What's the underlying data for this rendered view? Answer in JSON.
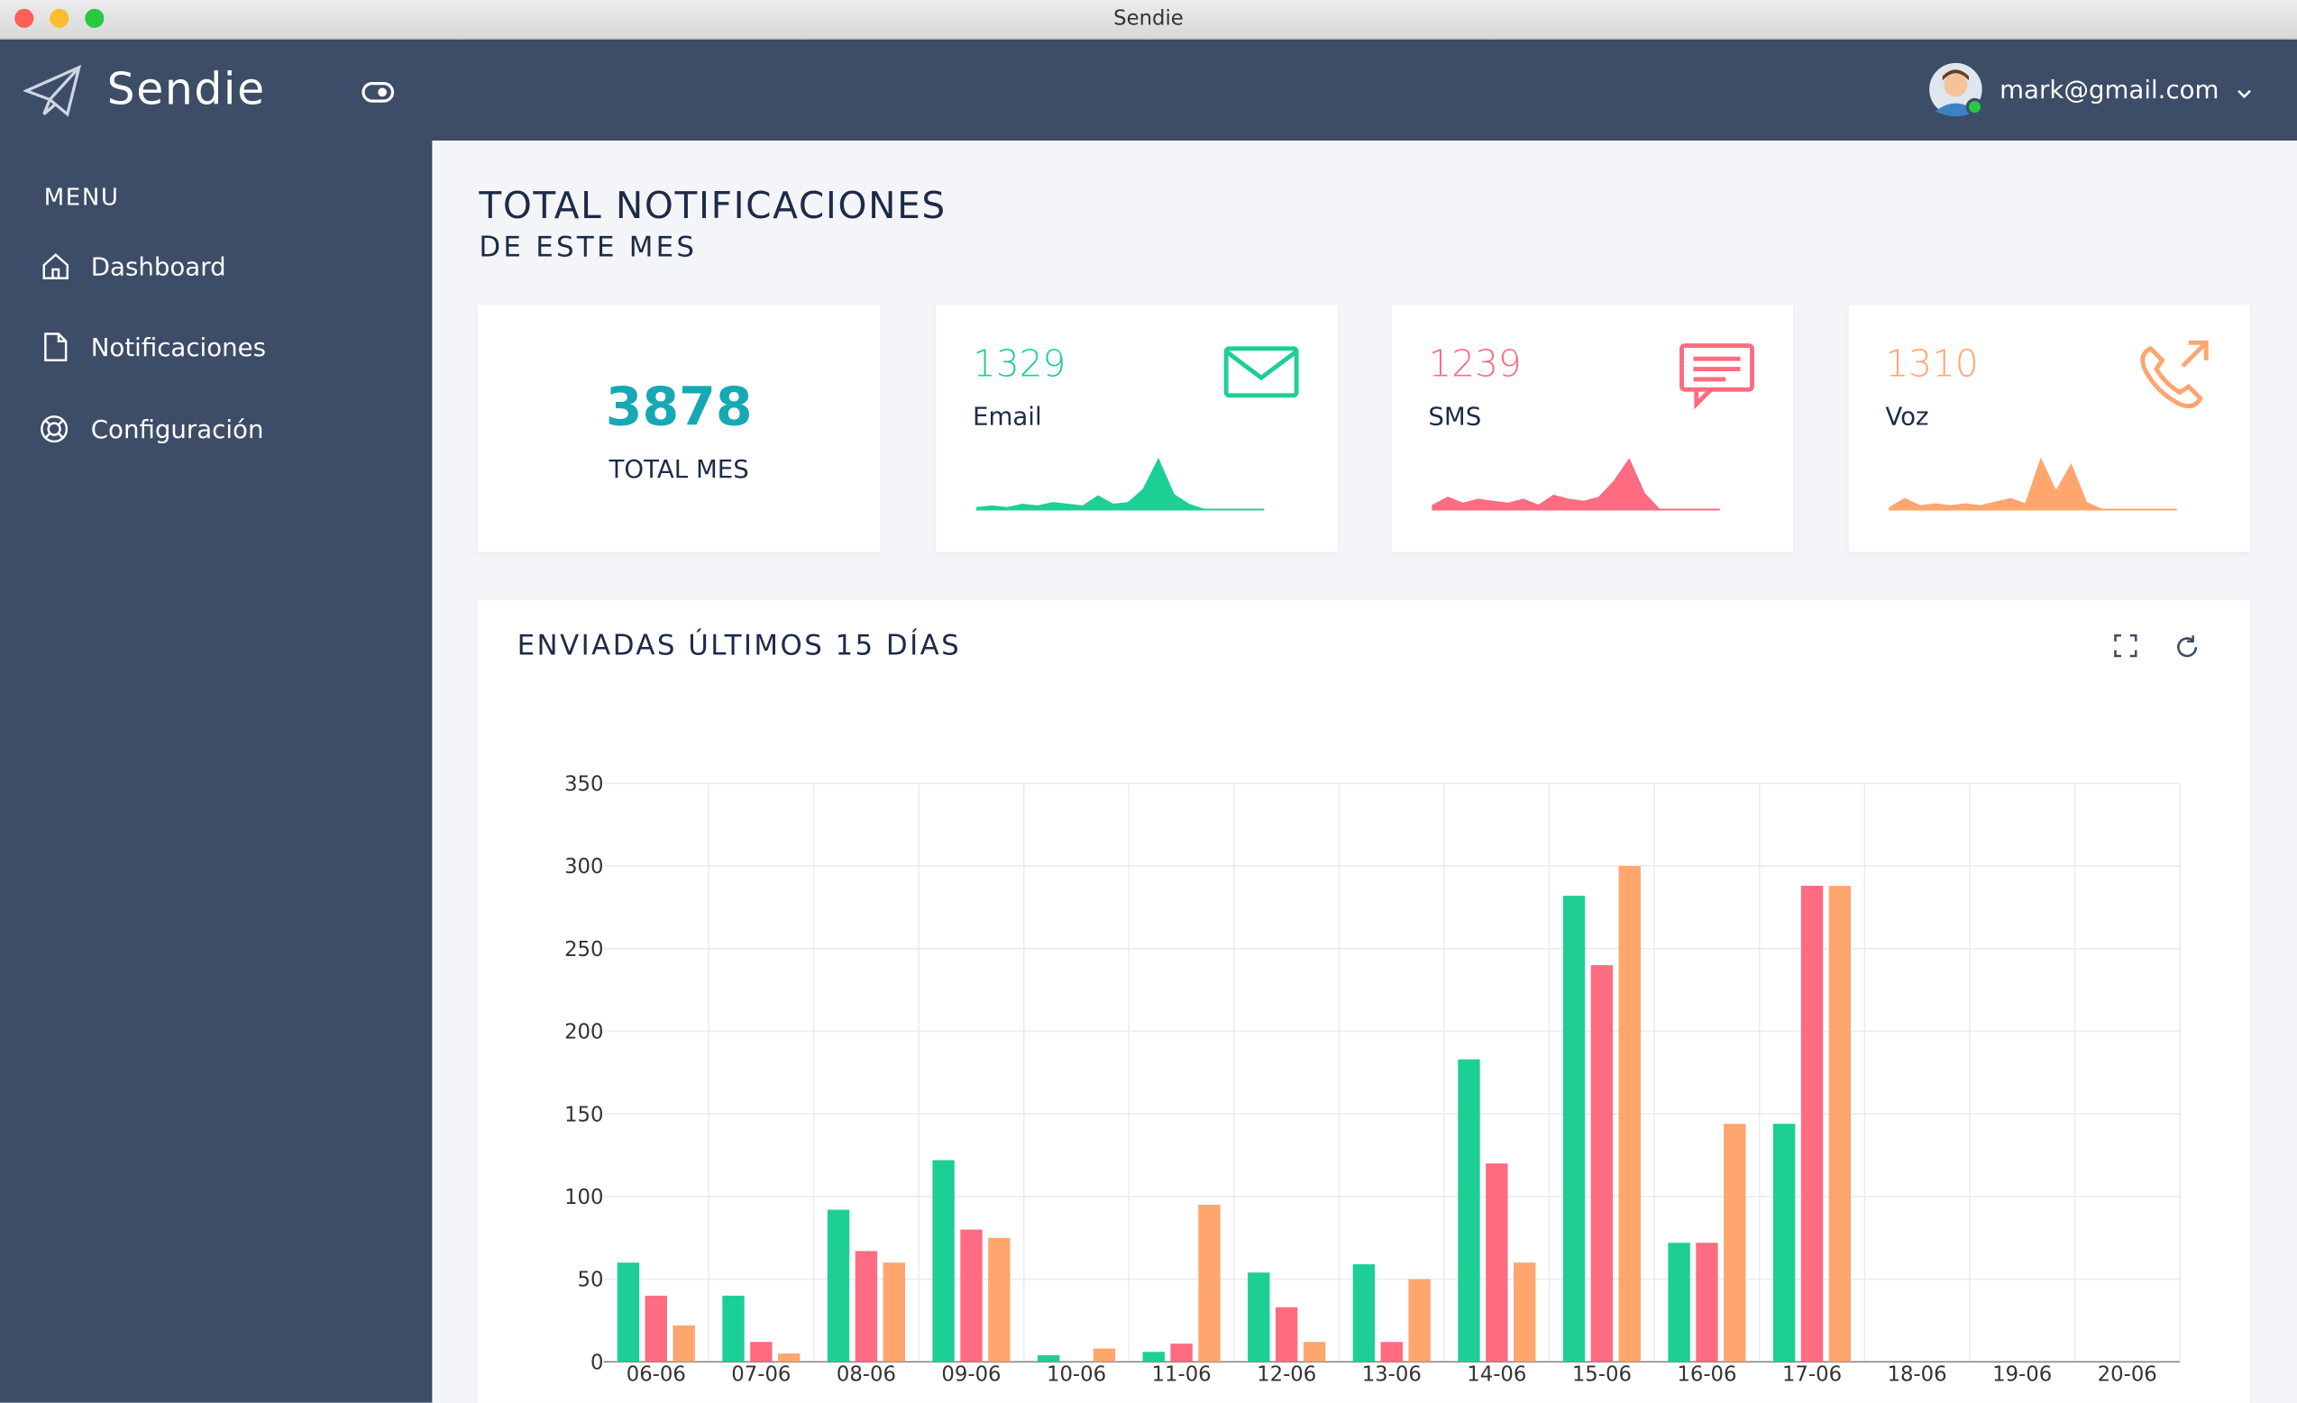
{
  "window": {
    "title": "Sendie"
  },
  "header": {
    "brand": "Sendie",
    "user": "mark@gmail.com"
  },
  "sidebar": {
    "menu_title": "MENU",
    "items": [
      "Dashboard",
      "Notificaciones",
      "Configuración"
    ]
  },
  "summary": {
    "title": "TOTAL NOTIFICACIONES",
    "subtitle": "DE ESTE MES",
    "total": {
      "value": "3878",
      "label": "TOTAL MES"
    },
    "cards": [
      {
        "value": "1329",
        "label": "Email",
        "color": "#1ecf95",
        "spark": [
          1,
          2,
          1,
          3,
          2,
          4,
          3,
          2,
          8,
          3,
          4,
          12,
          30,
          9,
          3,
          0,
          0,
          0,
          0,
          0
        ]
      },
      {
        "value": "1239",
        "label": "SMS",
        "color": "#ff6b81",
        "spark": [
          2,
          6,
          3,
          5,
          4,
          3,
          5,
          2,
          7,
          5,
          4,
          6,
          14,
          25,
          8,
          0,
          0,
          0,
          0,
          0
        ]
      },
      {
        "value": "1310",
        "label": "Voz",
        "color": "#ffa56e",
        "spark": [
          1,
          6,
          2,
          3,
          2,
          3,
          2,
          4,
          6,
          3,
          28,
          10,
          25,
          4,
          0,
          0,
          0,
          0,
          0,
          0
        ]
      }
    ]
  },
  "chart_data": {
    "type": "bar",
    "title": "ENVIADAS ÚLTIMOS 15 DÍAS",
    "categories": [
      "06-06",
      "07-06",
      "08-06",
      "09-06",
      "10-06",
      "11-06",
      "12-06",
      "13-06",
      "14-06",
      "15-06",
      "16-06",
      "17-06",
      "18-06",
      "19-06",
      "20-06"
    ],
    "series": [
      {
        "color": "#1ecf95",
        "values": [
          60,
          40,
          92,
          122,
          4,
          6,
          54,
          59,
          183,
          282,
          72,
          144,
          0,
          0,
          0
        ]
      },
      {
        "color": "#ff6b81",
        "values": [
          40,
          12,
          67,
          80,
          0,
          11,
          33,
          12,
          120,
          240,
          72,
          288,
          0,
          0,
          0
        ]
      },
      {
        "color": "#ffa56e",
        "values": [
          22,
          5,
          60,
          75,
          8,
          95,
          12,
          50,
          60,
          300,
          144,
          288,
          0,
          0,
          0
        ]
      }
    ],
    "ylim": [
      0,
      350
    ],
    "yticks": [
      0,
      50,
      100,
      150,
      200,
      250,
      300,
      350
    ],
    "grid": true
  }
}
